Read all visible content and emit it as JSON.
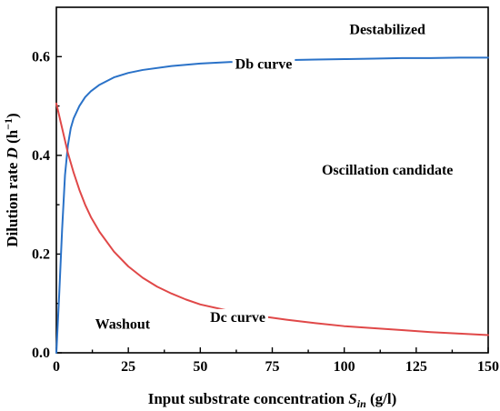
{
  "chart_data": {
    "type": "line",
    "xlabel_parts": [
      "Input substrate concentration ",
      "S",
      "in",
      " (g/l)"
    ],
    "ylabel_parts": [
      "Dilution rate ",
      "D",
      " (h",
      "−1",
      ")"
    ],
    "xlim": [
      0,
      150
    ],
    "ylim": [
      0,
      0.7
    ],
    "xticks": [
      0,
      25,
      50,
      75,
      100,
      125,
      150
    ],
    "yticks": [
      0.0,
      0.2,
      0.4,
      0.6
    ],
    "xtick_labels": [
      "0",
      "25",
      "50",
      "75",
      "100",
      "125",
      "150"
    ],
    "ytick_labels": [
      "0.0",
      "0.2",
      "0.4",
      "0.6"
    ],
    "grid": false,
    "series": [
      {
        "name": "Db curve",
        "color": "#2a72c8",
        "x": [
          0,
          1,
          2,
          3,
          4,
          5,
          6,
          8,
          10,
          12,
          15,
          20,
          25,
          30,
          40,
          50,
          60,
          70,
          80,
          90,
          100,
          110,
          120,
          130,
          140,
          150
        ],
        "y": [
          0.0,
          0.12,
          0.25,
          0.36,
          0.42,
          0.455,
          0.475,
          0.5,
          0.518,
          0.53,
          0.543,
          0.558,
          0.567,
          0.573,
          0.581,
          0.586,
          0.589,
          0.591,
          0.593,
          0.594,
          0.595,
          0.596,
          0.597,
          0.597,
          0.598,
          0.598
        ]
      },
      {
        "name": "Dc curve",
        "color": "#e04848",
        "x": [
          0,
          1,
          2,
          3,
          4,
          5,
          6,
          8,
          10,
          12,
          15,
          20,
          25,
          30,
          35,
          40,
          45,
          50,
          60,
          70,
          80,
          90,
          100,
          110,
          120,
          130,
          140,
          150
        ],
        "y": [
          0.505,
          0.48,
          0.455,
          0.43,
          0.405,
          0.385,
          0.365,
          0.33,
          0.3,
          0.275,
          0.245,
          0.205,
          0.175,
          0.152,
          0.134,
          0.12,
          0.108,
          0.098,
          0.085,
          0.075,
          0.067,
          0.06,
          0.054,
          0.05,
          0.046,
          0.042,
          0.039,
          0.036
        ]
      }
    ],
    "labels": [
      {
        "key": "db",
        "text": "Db curve",
        "x": 72,
        "y": 0.585
      },
      {
        "key": "dc",
        "text": "Dc curve",
        "x": 63,
        "y": 0.072
      },
      {
        "key": "destabilized",
        "text": "Destabilized",
        "x": 115,
        "y": 0.655
      },
      {
        "key": "oscillation",
        "text": "Oscillation candidate",
        "x": 115,
        "y": 0.37
      },
      {
        "key": "washout",
        "text": "Washout",
        "x": 23,
        "y": 0.058
      }
    ]
  }
}
